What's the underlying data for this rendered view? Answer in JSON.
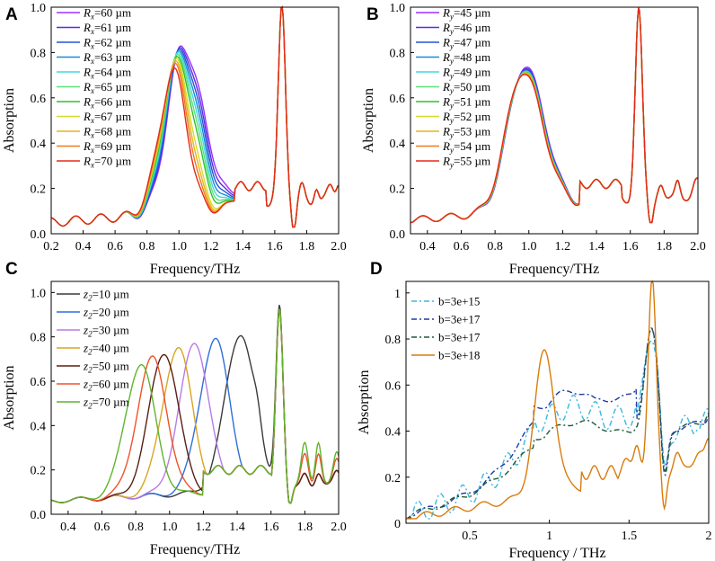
{
  "chart_data": [
    {
      "type": "line",
      "panel_label": "A",
      "xlabel": "Frequency/THz",
      "ylabel": "Absorption",
      "xlim": [
        0.2,
        2.0
      ],
      "ylim": [
        0.0,
        1.0
      ],
      "xticks": [
        "0.2",
        "0.4",
        "0.6",
        "0.8",
        "1.0",
        "1.2",
        "1.4",
        "1.6",
        "1.8",
        "2.0"
      ],
      "yticks": [
        "0.0",
        "0.2",
        "0.4",
        "0.6",
        "0.8",
        "1.0"
      ],
      "legend_position": "top-left",
      "legend_var": "R",
      "legend_sub": "x",
      "series": [
        {
          "name": "=60 µm",
          "color": "#9b30ff",
          "peak_f": 1.02,
          "peak_a": 0.83
        },
        {
          "name": "=61 µm",
          "color": "#5a2de0",
          "peak_f": 1.015,
          "peak_a": 0.82
        },
        {
          "name": "=62 µm",
          "color": "#2255d6",
          "peak_f": 1.01,
          "peak_a": 0.81
        },
        {
          "name": "=63 µm",
          "color": "#1c8ad8",
          "peak_f": 1.005,
          "peak_a": 0.8
        },
        {
          "name": "=64 µm",
          "color": "#42d9dc",
          "peak_f": 1.0,
          "peak_a": 0.79
        },
        {
          "name": "=65 µm",
          "color": "#5de07a",
          "peak_f": 0.995,
          "peak_a": 0.78
        },
        {
          "name": "=66 µm",
          "color": "#2fc02f",
          "peak_f": 0.99,
          "peak_a": 0.77
        },
        {
          "name": "=67 µm",
          "color": "#d6dc2a",
          "peak_f": 0.985,
          "peak_a": 0.76
        },
        {
          "name": "=68 µm",
          "color": "#e8b41a",
          "peak_f": 0.98,
          "peak_a": 0.75
        },
        {
          "name": "=69 µm",
          "color": "#f07a1c",
          "peak_f": 0.975,
          "peak_a": 0.74
        },
        {
          "name": "=70 µm",
          "color": "#e42a1a",
          "peak_f": 0.97,
          "peak_a": 0.72
        }
      ]
    },
    {
      "type": "line",
      "panel_label": "B",
      "xlabel": "Frequency/THz",
      "ylabel": "Absorption",
      "xlim": [
        0.3,
        2.0
      ],
      "ylim": [
        0.0,
        1.0
      ],
      "xticks": [
        "0.4",
        "0.6",
        "0.8",
        "1.0",
        "1.2",
        "1.4",
        "1.6",
        "1.8",
        "2.0"
      ],
      "yticks": [
        "0.0",
        "0.2",
        "0.4",
        "0.6",
        "0.8",
        "1.0"
      ],
      "legend_position": "top-left",
      "legend_var": "R",
      "legend_sub": "y",
      "series": [
        {
          "name": "=45 µm",
          "color": "#9b30ff",
          "peak_f": 0.975,
          "peak_a": 0.74
        },
        {
          "name": "=46 µm",
          "color": "#5a2de0",
          "peak_f": 0.973,
          "peak_a": 0.735
        },
        {
          "name": "=47 µm",
          "color": "#2255d6",
          "peak_f": 0.972,
          "peak_a": 0.73
        },
        {
          "name": "=48 µm",
          "color": "#1c8ad8",
          "peak_f": 0.971,
          "peak_a": 0.727
        },
        {
          "name": "=49 µm",
          "color": "#42d9dc",
          "peak_f": 0.97,
          "peak_a": 0.725
        },
        {
          "name": "=50 µm",
          "color": "#5de07a",
          "peak_f": 0.969,
          "peak_a": 0.723
        },
        {
          "name": "=51 µm",
          "color": "#2fc02f",
          "peak_f": 0.968,
          "peak_a": 0.721
        },
        {
          "name": "=52 µm",
          "color": "#d6dc2a",
          "peak_f": 0.967,
          "peak_a": 0.72
        },
        {
          "name": "=53 µm",
          "color": "#e8b41a",
          "peak_f": 0.966,
          "peak_a": 0.718
        },
        {
          "name": "=54 µm",
          "color": "#f07a1c",
          "peak_f": 0.965,
          "peak_a": 0.716
        },
        {
          "name": "=55 µm",
          "color": "#e42a1a",
          "peak_f": 0.964,
          "peak_a": 0.714
        }
      ]
    },
    {
      "type": "line",
      "panel_label": "C",
      "xlabel": "Frequency/THz",
      "ylabel": "Absorption",
      "xlim": [
        0.3,
        2.0
      ],
      "ylim": [
        0.0,
        1.05
      ],
      "xticks": [
        "0.4",
        "0.6",
        "0.8",
        "1.0",
        "1.2",
        "1.4",
        "1.6",
        "1.8",
        "2.0"
      ],
      "yticks": [
        "0.0",
        "0.2",
        "0.4",
        "0.6",
        "0.8",
        "1.0"
      ],
      "legend_position": "top-left",
      "legend_var": "z",
      "legend_sub": "2",
      "series": [
        {
          "name": "=10 µm",
          "color": "#3a3a3a",
          "peak_f": 1.42,
          "peak_a": 0.79
        },
        {
          "name": "=20 µm",
          "color": "#2f6fd8",
          "peak_f": 1.27,
          "peak_a": 0.77
        },
        {
          "name": "=30 µm",
          "color": "#b87be8",
          "peak_f": 1.15,
          "peak_a": 0.755
        },
        {
          "name": "=40 µm",
          "color": "#d9a520",
          "peak_f": 1.05,
          "peak_a": 0.74
        },
        {
          "name": "=50 µm",
          "color": "#5a1e12",
          "peak_f": 0.97,
          "peak_a": 0.72
        },
        {
          "name": "=60 µm",
          "color": "#f0522a",
          "peak_f": 0.9,
          "peak_a": 0.7
        },
        {
          "name": "=70 µm",
          "color": "#5fb42e",
          "peak_f": 0.83,
          "peak_a": 0.675
        }
      ]
    },
    {
      "type": "line",
      "panel_label": "D",
      "xlabel": "Frequency / THz",
      "ylabel": "Absorption",
      "xlim": [
        0.1,
        2.0
      ],
      "ylim": [
        0.0,
        1.05
      ],
      "xticks": [
        "0.5",
        "1",
        "1.5",
        "2"
      ],
      "yticks": [
        "0",
        "0.2",
        "0.4",
        "0.6",
        "0.8",
        "1"
      ],
      "legend_position": "top-left",
      "series": [
        {
          "name": "b=3e+15",
          "color": "#3bb7e0",
          "style": "dash-dot",
          "peak_f": 1.05,
          "peak_a": 0.45
        },
        {
          "name": "b=3e+17",
          "color": "#1f3aa8",
          "style": "dash-dot",
          "peak_f": 1.05,
          "peak_a": 0.53
        },
        {
          "name": "b=3e+17",
          "color": "#1e5a3a",
          "style": "dash-dot",
          "peak_f": 0.95,
          "peak_a": 0.47
        },
        {
          "name": "b=3e+18",
          "color": "#d97b0b",
          "style": "solid",
          "peak_f": 0.97,
          "peak_a": 0.72
        }
      ]
    }
  ]
}
